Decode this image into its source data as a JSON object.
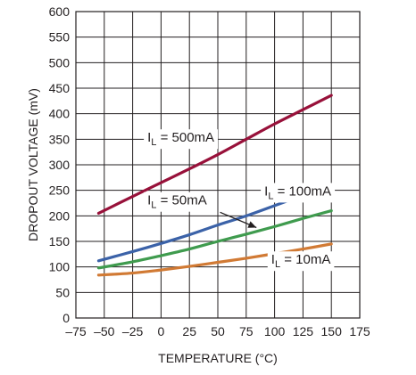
{
  "chart_data": {
    "type": "line",
    "xlabel": "TEMPERATURE (°C)",
    "ylabel": "DROPOUT VOLTAGE (mV)",
    "xlim": [
      -75,
      175
    ],
    "ylim": [
      0,
      600
    ],
    "x_ticks": [
      "–75",
      "–50",
      "–25",
      "0",
      "25",
      "50",
      "75",
      "100",
      "125",
      "150",
      "175"
    ],
    "y_ticks": [
      "0",
      "50",
      "100",
      "150",
      "200",
      "250",
      "300",
      "350",
      "400",
      "450",
      "500",
      "550",
      "600"
    ],
    "x_tick_values": [
      -75,
      -50,
      -25,
      0,
      25,
      50,
      75,
      100,
      125,
      150,
      175
    ],
    "y_tick_values": [
      0,
      50,
      100,
      150,
      200,
      250,
      300,
      350,
      400,
      450,
      500,
      550,
      600
    ],
    "grid": true,
    "series": [
      {
        "name": "IL = 500mA",
        "label_main": "I",
        "label_sub": "L",
        "label_rest": " = 500mA",
        "color": "#98113a",
        "x": [
          -55,
          -25,
          0,
          25,
          50,
          75,
          100,
          125,
          150
        ],
        "y": [
          205,
          238,
          265,
          292,
          320,
          350,
          380,
          408,
          436
        ]
      },
      {
        "name": "IL = 100mA",
        "label_main": "I",
        "label_sub": "L",
        "label_rest": " = 100mA",
        "color": "#3b62a8",
        "x": [
          -55,
          -25,
          0,
          25,
          50,
          75,
          100,
          125,
          150
        ],
        "y": [
          112,
          130,
          146,
          163,
          182,
          200,
          220,
          240,
          258
        ]
      },
      {
        "name": "IL = 50mA",
        "label_main": "I",
        "label_sub": "L",
        "label_rest": " = 50mA",
        "color": "#3f9b4e",
        "x": [
          -55,
          -25,
          0,
          25,
          50,
          75,
          100,
          125,
          150
        ],
        "y": [
          98,
          110,
          122,
          135,
          150,
          164,
          179,
          195,
          210
        ]
      },
      {
        "name": "IL = 10mA",
        "label_main": "I",
        "label_sub": "L",
        "label_rest": " = 10mA",
        "color": "#d17a34",
        "x": [
          -55,
          -25,
          0,
          25,
          50,
          75,
          100,
          125,
          150
        ],
        "y": [
          84,
          88,
          94,
          101,
          109,
          117,
          126,
          135,
          145
        ]
      }
    ]
  }
}
